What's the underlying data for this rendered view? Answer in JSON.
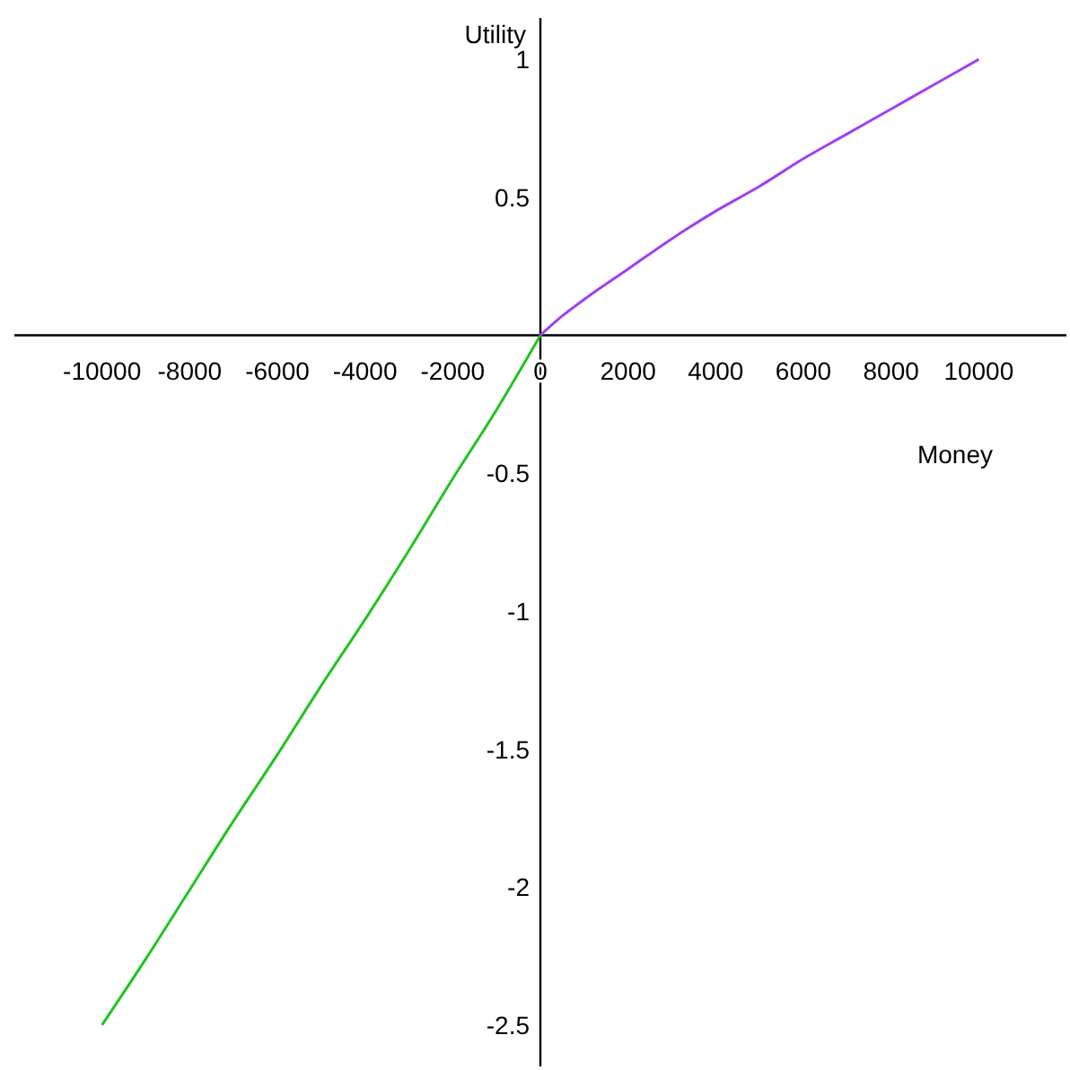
{
  "chart_data": {
    "type": "line",
    "xlabel": "Money",
    "ylabel": "Utility",
    "xlim": [
      -12000,
      12000
    ],
    "ylim": [
      -2.65,
      1.15
    ],
    "xticks": [
      -10000,
      -8000,
      -6000,
      -4000,
      -2000,
      0,
      2000,
      4000,
      6000,
      8000,
      10000
    ],
    "yticks": [
      -2.5,
      -2,
      -1.5,
      -1,
      -0.5,
      0.5,
      1
    ],
    "grid": false,
    "marker": "none",
    "line_style": "solid",
    "series": [
      {
        "color": "#22c322",
        "x": [
          -10000,
          -9000,
          -8000,
          -7000,
          -6000,
          -5000,
          -4000,
          -3000,
          -2000,
          -1000,
          0
        ],
        "values": [
          -2.5,
          -2.26,
          -2.01,
          -1.76,
          -1.52,
          -1.27,
          -1.03,
          -0.78,
          -0.52,
          -0.27,
          0
        ]
      },
      {
        "color": "#a040f0",
        "x": [
          0,
          500,
          1000,
          2000,
          3000,
          4000,
          5000,
          6000,
          7000,
          8000,
          9000,
          10000
        ],
        "values": [
          0,
          0.07,
          0.13,
          0.24,
          0.35,
          0.45,
          0.54,
          0.64,
          0.73,
          0.82,
          0.91,
          1
        ]
      }
    ]
  }
}
